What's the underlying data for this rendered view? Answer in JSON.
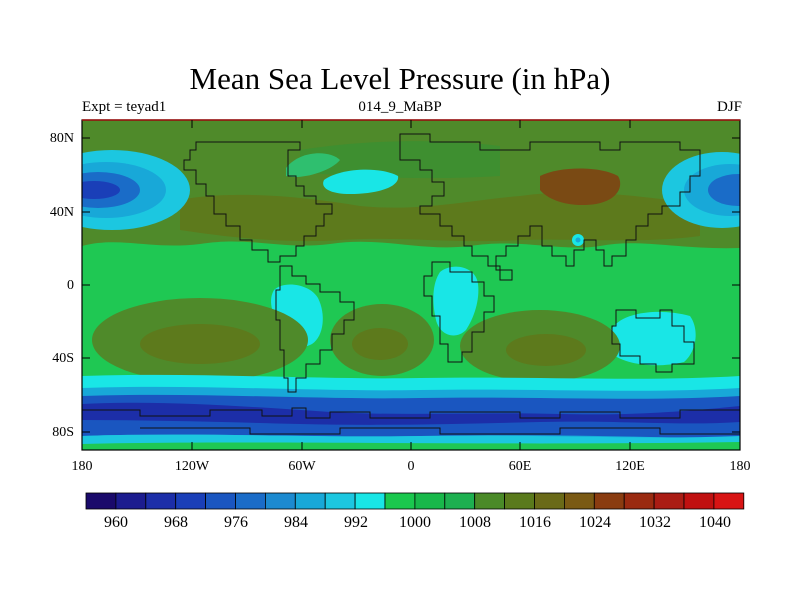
{
  "title": "Mean Sea Level Pressure (in hPa)",
  "left_subtitle": "Expt = teyad1",
  "center_subtitle": "014_9_MaBP",
  "right_subtitle": "DJF",
  "lat_ticks": [
    "80N",
    "40N",
    "0",
    "40S",
    "80S"
  ],
  "lon_ticks": [
    "180",
    "120W",
    "60W",
    "0",
    "60E",
    "120E",
    "180"
  ],
  "colorbar": {
    "labels": [
      "960",
      "968",
      "976",
      "984",
      "992",
      "1000",
      "1008",
      "1016",
      "1024",
      "1032",
      "1040"
    ],
    "colors": [
      "#1a0a6b",
      "#1c1c8f",
      "#1c2ea8",
      "#1a3fb8",
      "#1a56c0",
      "#1a6cc8",
      "#1c8ad0",
      "#18a8d8",
      "#1cc7e0",
      "#19e6e6",
      "#1ac84e",
      "#18b84a",
      "#1db050",
      "#4a8a28",
      "#5a7a1c",
      "#6a6a18",
      "#7a5a14",
      "#8a3c10",
      "#9a2a10",
      "#aa1c14",
      "#c01010",
      "#d81414"
    ]
  }
}
